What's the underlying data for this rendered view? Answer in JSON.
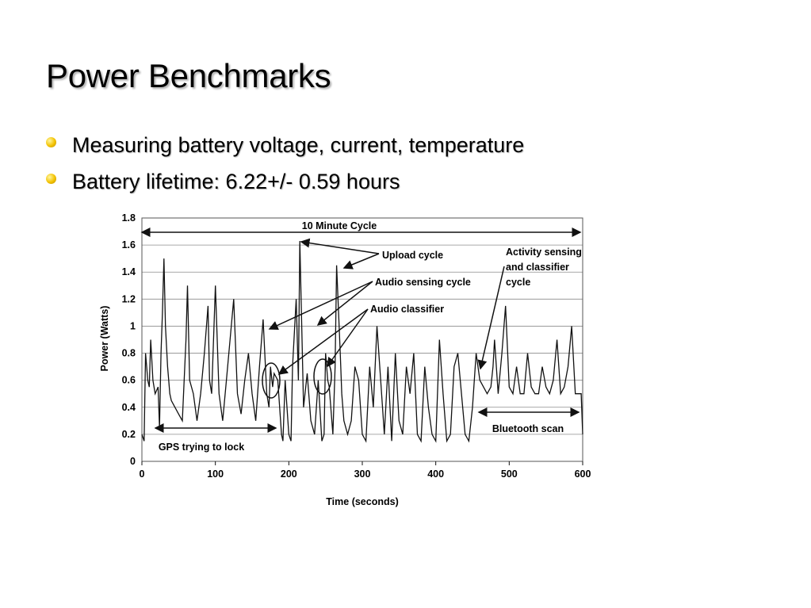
{
  "slide": {
    "title": "Power Benchmarks",
    "bullets": [
      "Measuring battery voltage, current, temperature",
      "Battery lifetime: 6.22+/- 0.59 hours"
    ]
  },
  "colors": {
    "bullet": "#f3c200",
    "trace": "#111111",
    "grid": "#8c8c8c"
  },
  "chart_data": {
    "type": "line",
    "title": "",
    "xlabel": "Time (seconds)",
    "ylabel": "Power (Watts)",
    "xlim": [
      0,
      600
    ],
    "ylim": [
      0,
      1.8
    ],
    "xticks": [
      0,
      100,
      200,
      300,
      400,
      500,
      600
    ],
    "yticks": [
      0,
      0.2,
      0.4,
      0.6,
      0.8,
      1,
      1.2,
      1.4,
      1.6,
      1.8
    ],
    "ytick_labels": [
      "0",
      "0.2",
      "0.4",
      "0.6",
      "0.8",
      "1",
      "1.2",
      "1.4",
      "1.6",
      "1.8"
    ],
    "grid": true,
    "series": [
      {
        "x": [
          0,
          3,
          5,
          8,
          10,
          12,
          15,
          18,
          22,
          24,
          26,
          28,
          30,
          32,
          35,
          38,
          40,
          45,
          50,
          55,
          60,
          62,
          65,
          70,
          75,
          80,
          85,
          90,
          92,
          95,
          100,
          105,
          110,
          115,
          120,
          125,
          130,
          135,
          140,
          145,
          150,
          155,
          160,
          165,
          170,
          173,
          175,
          178,
          180,
          185,
          190,
          192,
          195,
          200,
          203,
          205,
          210,
          213,
          215,
          218,
          220,
          225,
          230,
          235,
          240,
          245,
          248,
          250,
          253,
          255,
          260,
          263,
          265,
          270,
          272,
          275,
          280,
          285,
          290,
          295,
          300,
          305,
          310,
          315,
          320,
          325,
          330,
          335,
          340,
          345,
          350,
          355,
          360,
          365,
          370,
          375,
          380,
          385,
          390,
          395,
          400,
          405,
          410,
          415,
          420,
          425,
          430,
          435,
          440,
          445,
          450,
          455,
          460,
          465,
          470,
          475,
          478,
          480,
          485,
          490,
          495,
          500,
          505,
          510,
          515,
          520,
          525,
          530,
          535,
          540,
          545,
          550,
          555,
          560,
          565,
          570,
          575,
          580,
          585,
          590,
          595,
          598,
          600
        ],
        "y": [
          0.2,
          0.15,
          0.8,
          0.6,
          0.55,
          0.9,
          0.6,
          0.5,
          0.55,
          0.25,
          0.8,
          1.1,
          1.5,
          1.0,
          0.7,
          0.5,
          0.45,
          0.4,
          0.35,
          0.3,
          0.9,
          1.3,
          0.6,
          0.5,
          0.3,
          0.5,
          0.8,
          1.15,
          0.6,
          0.5,
          1.3,
          0.5,
          0.3,
          0.6,
          0.9,
          1.2,
          0.5,
          0.35,
          0.6,
          0.8,
          0.5,
          0.3,
          0.7,
          1.05,
          0.5,
          0.4,
          0.7,
          0.55,
          0.65,
          0.6,
          0.2,
          0.15,
          0.6,
          0.2,
          0.15,
          0.7,
          1.2,
          0.6,
          1.63,
          0.9,
          0.4,
          0.65,
          0.3,
          0.2,
          0.6,
          0.15,
          0.2,
          0.8,
          0.6,
          0.55,
          0.2,
          0.7,
          1.45,
          0.8,
          0.5,
          0.3,
          0.2,
          0.3,
          0.7,
          0.6,
          0.2,
          0.15,
          0.7,
          0.4,
          1.0,
          0.6,
          0.2,
          0.7,
          0.15,
          0.8,
          0.3,
          0.2,
          0.7,
          0.5,
          0.8,
          0.2,
          0.15,
          0.7,
          0.4,
          0.2,
          0.15,
          0.9,
          0.5,
          0.15,
          0.2,
          0.7,
          0.8,
          0.5,
          0.2,
          0.15,
          0.4,
          0.8,
          0.6,
          0.55,
          0.5,
          0.55,
          0.7,
          0.9,
          0.5,
          0.8,
          1.15,
          0.55,
          0.5,
          0.7,
          0.5,
          0.5,
          0.8,
          0.55,
          0.5,
          0.5,
          0.7,
          0.55,
          0.5,
          0.6,
          0.9,
          0.5,
          0.55,
          0.7,
          1.0,
          0.5,
          0.5,
          0.5,
          0.2
        ]
      }
    ],
    "annotations": [
      "10 Minute Cycle",
      "Upload cycle",
      "Audio sensing cycle",
      "Audio classifier",
      "Activity sensing",
      "and classifier",
      "cycle",
      "GPS trying to lock",
      "Bluetooth scan"
    ]
  }
}
